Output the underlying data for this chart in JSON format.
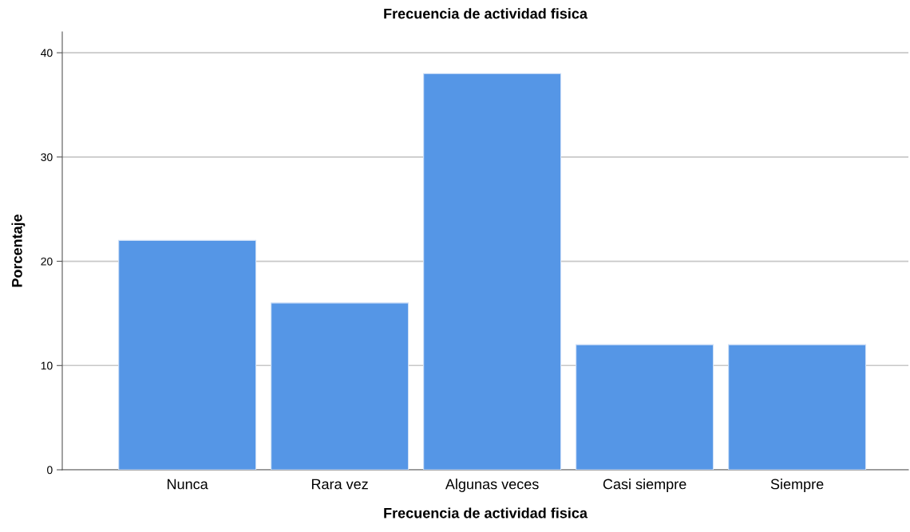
{
  "chart_data": {
    "type": "bar",
    "title": "Frecuencia de actividad fisica",
    "xlabel": "Frecuencia de actividad fisica",
    "ylabel": "Porcentaje",
    "categories": [
      "Nunca",
      "Rara vez",
      "Algunas veces",
      "Casi siempre",
      "Siempre"
    ],
    "values": [
      22,
      16,
      38,
      12,
      12
    ],
    "color": "#5596e6",
    "ylim": [
      0,
      42
    ],
    "yticks": [
      0,
      10,
      20,
      30,
      40
    ],
    "grid": "y"
  }
}
